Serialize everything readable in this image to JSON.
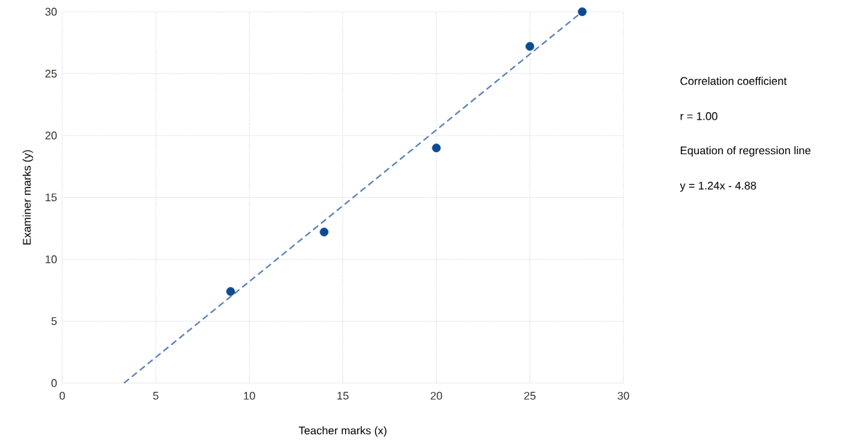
{
  "chart_data": {
    "type": "scatter",
    "xlabel": "Teacher marks (x)",
    "ylabel": "Examiner marks (y)",
    "xlim": [
      0,
      30
    ],
    "ylim": [
      0,
      30
    ],
    "xticks": [
      0,
      5,
      10,
      15,
      20,
      25,
      30
    ],
    "yticks": [
      0,
      5,
      10,
      15,
      20,
      25,
      30
    ],
    "grid": true,
    "annotations": [
      "Correlation coefficient",
      "r = 1.00",
      "Equation of regression line",
      "y = 1.24x - 4.88"
    ],
    "series": [
      {
        "color": "#0e4a94",
        "marker": "circle",
        "x": [
          9,
          14,
          20,
          25,
          27.8
        ],
        "values": [
          7.4,
          12.2,
          19,
          27.2,
          30
        ]
      },
      {
        "type": "line",
        "color": "#5b80b4",
        "marker": "none",
        "line_style": "dashed",
        "x": [
          3.3,
          27.8
        ],
        "values": [
          0,
          30
        ]
      }
    ]
  }
}
